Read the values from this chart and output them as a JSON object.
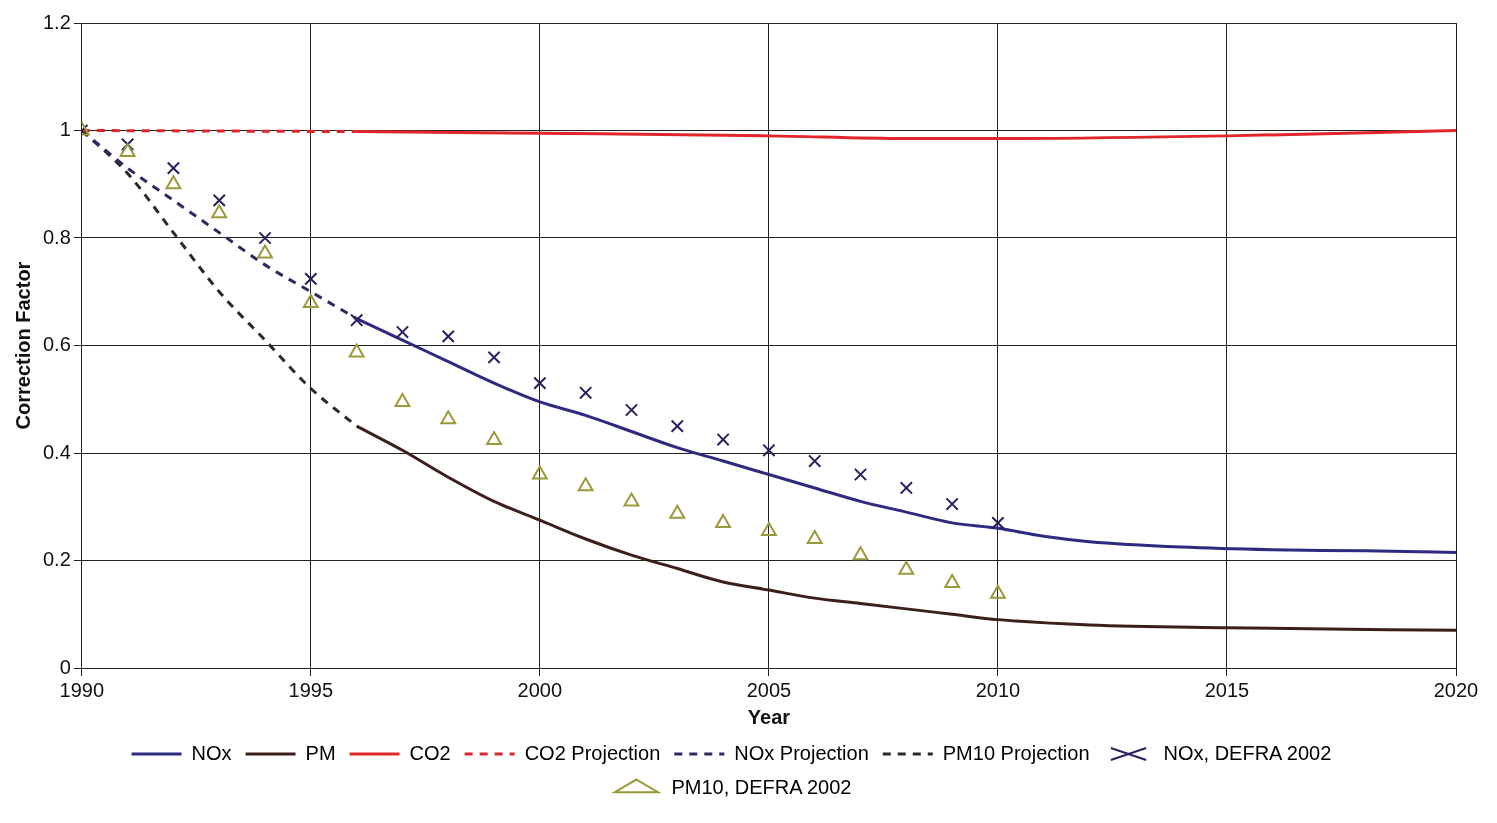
{
  "chart_data": {
    "type": "line",
    "xlabel": "Year",
    "ylabel": "Correction Factor",
    "xlim": [
      1990,
      2020
    ],
    "xticks": [
      1990,
      1995,
      2000,
      2005,
      2010,
      2015,
      2020
    ],
    "ylim": [
      0,
      1.2
    ],
    "yticks": [
      0,
      0.2,
      0.4,
      0.6,
      0.8,
      1,
      1.2
    ],
    "grid": true,
    "legend": "bottom",
    "series": [
      {
        "name": "NOx",
        "type": "line",
        "color": "#2e2a80",
        "line_style": "solid",
        "marker": "none",
        "x": [
          1996,
          1997,
          1998,
          1999,
          2000,
          2001,
          2002,
          2003,
          2004,
          2005,
          2006,
          2007,
          2008,
          2009,
          2010,
          2011,
          2012,
          2014,
          2016,
          2018,
          2020
        ],
        "values": [
          0.65,
          0.61,
          0.57,
          0.53,
          0.495,
          0.47,
          0.44,
          0.41,
          0.385,
          0.36,
          0.335,
          0.31,
          0.29,
          0.27,
          0.26,
          0.245,
          0.235,
          0.225,
          0.22,
          0.218,
          0.215
        ]
      },
      {
        "name": "PM",
        "type": "line",
        "color": "#3a1f1a",
        "line_style": "solid",
        "marker": "none",
        "x": [
          1996,
          1997,
          1998,
          1999,
          2000,
          2001,
          2002,
          2003,
          2004,
          2005,
          2006,
          2007,
          2008,
          2009,
          2010,
          2012,
          2015,
          2020
        ],
        "values": [
          0.45,
          0.405,
          0.355,
          0.31,
          0.275,
          0.24,
          0.21,
          0.185,
          0.16,
          0.145,
          0.13,
          0.12,
          0.11,
          0.1,
          0.09,
          0.08,
          0.075,
          0.07
        ]
      },
      {
        "name": "CO2",
        "type": "line",
        "color": "#e0262a",
        "line_style": "solid",
        "marker": "none",
        "x": [
          1996,
          2000,
          2005,
          2008,
          2010,
          2015,
          2020
        ],
        "values": [
          0.998,
          0.995,
          0.99,
          0.985,
          0.985,
          0.99,
          1.0
        ]
      },
      {
        "name": "CO2 Projection",
        "type": "line",
        "color": "#e0262a",
        "line_style": "dashed",
        "marker": "none",
        "x": [
          1990,
          1996
        ],
        "values": [
          1.0,
          0.998
        ]
      },
      {
        "name": "NOx Projection",
        "type": "line",
        "color": "#2e2a60",
        "line_style": "dashed",
        "marker": "none",
        "x": [
          1990,
          1991,
          1992,
          1993,
          1994,
          1995,
          1996
        ],
        "values": [
          1.0,
          0.93,
          0.87,
          0.81,
          0.75,
          0.7,
          0.65
        ]
      },
      {
        "name": "PM10 Projection",
        "type": "line",
        "color": "#2a2a2a",
        "line_style": "dashed",
        "marker": "none",
        "x": [
          1990,
          1991,
          1992,
          1993,
          1994,
          1995,
          1996
        ],
        "values": [
          1.0,
          0.92,
          0.81,
          0.7,
          0.61,
          0.52,
          0.45
        ]
      },
      {
        "name": "NOx, DEFRA 2002",
        "type": "scatter",
        "color": "#2a2060",
        "marker": "cross",
        "x": [
          1990,
          1991,
          1992,
          1993,
          1994,
          1995,
          1996,
          1997,
          1998,
          1999,
          2000,
          2001,
          2002,
          2003,
          2004,
          2005,
          2006,
          2007,
          2008,
          2009,
          2010
        ],
        "values": [
          1.0,
          0.974,
          0.93,
          0.87,
          0.8,
          0.724,
          0.647,
          0.625,
          0.617,
          0.578,
          0.53,
          0.512,
          0.48,
          0.45,
          0.425,
          0.405,
          0.385,
          0.36,
          0.335,
          0.305,
          0.27
        ]
      },
      {
        "name": "PM10, DEFRA 2002",
        "type": "scatter",
        "color": "#9a9a3a",
        "marker": "triangle",
        "x": [
          1990,
          1991,
          1992,
          1993,
          1994,
          1995,
          1996,
          1997,
          1998,
          1999,
          2000,
          2001,
          2002,
          2003,
          2004,
          2005,
          2006,
          2007,
          2008,
          2009,
          2010
        ],
        "values": [
          1.0,
          0.96,
          0.9,
          0.846,
          0.771,
          0.679,
          0.587,
          0.495,
          0.463,
          0.424,
          0.36,
          0.338,
          0.31,
          0.287,
          0.27,
          0.255,
          0.24,
          0.21,
          0.183,
          0.158,
          0.138
        ]
      }
    ]
  }
}
